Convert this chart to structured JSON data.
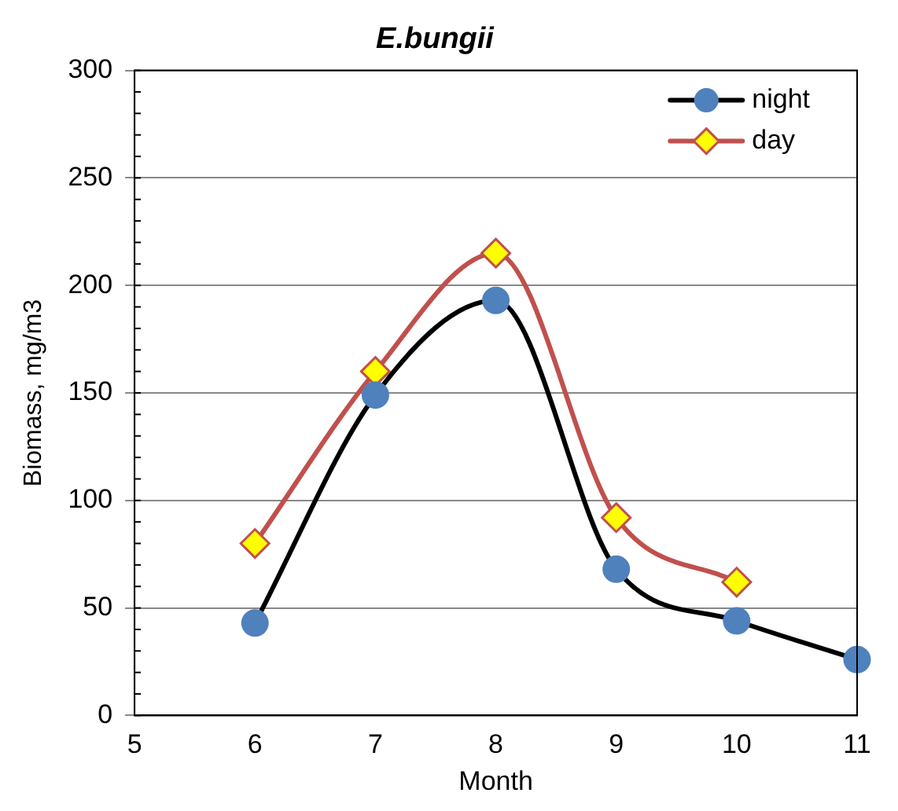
{
  "chart_data": {
    "type": "line",
    "title": "E.bungii",
    "xlabel": "Month",
    "ylabel": "Biomass, mg/m3",
    "series": [
      {
        "name": "night",
        "color": "#000000",
        "marker": "circle",
        "x": [
          6,
          7,
          8,
          9,
          10,
          11
        ],
        "values": [
          43,
          149,
          193,
          68,
          44,
          26
        ]
      },
      {
        "name": "day",
        "color": "#c0504d",
        "marker": "diamond",
        "x": [
          6,
          7,
          8,
          9,
          10
        ],
        "values": [
          80,
          160,
          215,
          92,
          62
        ]
      }
    ],
    "xlim": [
      5,
      11
    ],
    "xticks": [
      5,
      6,
      7,
      8,
      9,
      10,
      11
    ],
    "ylim": [
      0,
      300
    ],
    "yticks": [
      0,
      50,
      100,
      150,
      200,
      250,
      300
    ],
    "grid": "y",
    "legend": "top right"
  }
}
